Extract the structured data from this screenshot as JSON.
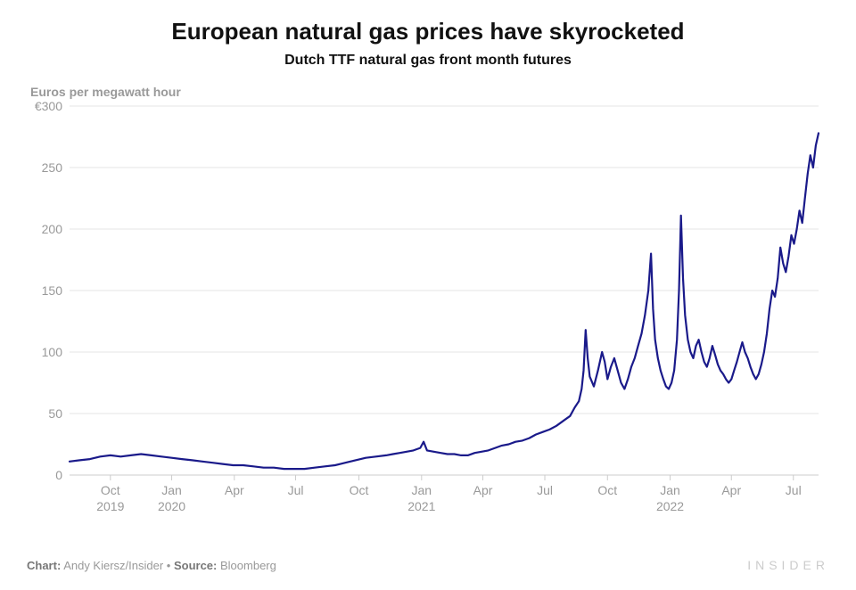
{
  "title": "European natural gas prices have skyrocketed",
  "subtitle": "Dutch TTF natural gas front month futures",
  "ylabel": "Euros per megawatt hour",
  "footer": {
    "chart_label": "Chart:",
    "chart_credit": "Andy Kiersz/Insider",
    "separator": " • ",
    "source_label": "Source:",
    "source_credit": "Bloomberg",
    "brand": "INSIDER"
  },
  "chart": {
    "type": "line",
    "line_color": "#1a1a8a",
    "line_width": 2.2,
    "background_color": "#ffffff",
    "grid_color": "#e5e5e5",
    "axis_color": "#cccccc",
    "ylim": [
      0,
      300
    ],
    "yticks": [
      0,
      50,
      100,
      150,
      200,
      250
    ],
    "ytick_labels": [
      "0",
      "50",
      "100",
      "150",
      "200",
      "250",
      "€300"
    ],
    "ytick_values": [
      0,
      50,
      100,
      150,
      200,
      250,
      300
    ],
    "x_index_range": [
      0,
      1100
    ],
    "xticks": [
      {
        "idx": 60,
        "top": "Oct",
        "bottom": "2019"
      },
      {
        "idx": 150,
        "top": "Jan",
        "bottom": "2020"
      },
      {
        "idx": 242,
        "top": "Apr",
        "bottom": ""
      },
      {
        "idx": 332,
        "top": "Jul",
        "bottom": ""
      },
      {
        "idx": 425,
        "top": "Oct",
        "bottom": ""
      },
      {
        "idx": 517,
        "top": "Jan",
        "bottom": "2021"
      },
      {
        "idx": 607,
        "top": "Apr",
        "bottom": ""
      },
      {
        "idx": 698,
        "top": "Jul",
        "bottom": ""
      },
      {
        "idx": 790,
        "top": "Oct",
        "bottom": ""
      },
      {
        "idx": 882,
        "top": "Jan",
        "bottom": "2022"
      },
      {
        "idx": 972,
        "top": "Apr",
        "bottom": ""
      },
      {
        "idx": 1063,
        "top": "Jul",
        "bottom": ""
      }
    ],
    "data": [
      [
        0,
        11
      ],
      [
        15,
        12
      ],
      [
        30,
        13
      ],
      [
        45,
        15
      ],
      [
        60,
        16
      ],
      [
        75,
        15
      ],
      [
        90,
        16
      ],
      [
        105,
        17
      ],
      [
        120,
        16
      ],
      [
        135,
        15
      ],
      [
        150,
        14
      ],
      [
        165,
        13
      ],
      [
        180,
        12
      ],
      [
        195,
        11
      ],
      [
        210,
        10
      ],
      [
        225,
        9
      ],
      [
        240,
        8
      ],
      [
        255,
        8
      ],
      [
        270,
        7
      ],
      [
        285,
        6
      ],
      [
        300,
        6
      ],
      [
        315,
        5
      ],
      [
        330,
        5
      ],
      [
        345,
        5
      ],
      [
        360,
        6
      ],
      [
        375,
        7
      ],
      [
        390,
        8
      ],
      [
        405,
        10
      ],
      [
        420,
        12
      ],
      [
        435,
        14
      ],
      [
        450,
        15
      ],
      [
        465,
        16
      ],
      [
        475,
        17
      ],
      [
        485,
        18
      ],
      [
        495,
        19
      ],
      [
        505,
        20
      ],
      [
        515,
        22
      ],
      [
        520,
        27
      ],
      [
        525,
        20
      ],
      [
        535,
        19
      ],
      [
        545,
        18
      ],
      [
        555,
        17
      ],
      [
        565,
        17
      ],
      [
        575,
        16
      ],
      [
        585,
        16
      ],
      [
        595,
        18
      ],
      [
        605,
        19
      ],
      [
        615,
        20
      ],
      [
        625,
        22
      ],
      [
        635,
        24
      ],
      [
        645,
        25
      ],
      [
        655,
        27
      ],
      [
        665,
        28
      ],
      [
        675,
        30
      ],
      [
        685,
        33
      ],
      [
        695,
        35
      ],
      [
        705,
        37
      ],
      [
        715,
        40
      ],
      [
        725,
        44
      ],
      [
        735,
        48
      ],
      [
        742,
        55
      ],
      [
        748,
        60
      ],
      [
        752,
        70
      ],
      [
        755,
        85
      ],
      [
        758,
        118
      ],
      [
        761,
        95
      ],
      [
        764,
        80
      ],
      [
        770,
        72
      ],
      [
        776,
        85
      ],
      [
        782,
        100
      ],
      [
        786,
        92
      ],
      [
        790,
        78
      ],
      [
        795,
        88
      ],
      [
        800,
        95
      ],
      [
        805,
        85
      ],
      [
        810,
        75
      ],
      [
        815,
        70
      ],
      [
        820,
        78
      ],
      [
        825,
        88
      ],
      [
        830,
        95
      ],
      [
        835,
        105
      ],
      [
        840,
        115
      ],
      [
        845,
        130
      ],
      [
        850,
        150
      ],
      [
        854,
        180
      ],
      [
        857,
        135
      ],
      [
        860,
        110
      ],
      [
        864,
        95
      ],
      [
        868,
        85
      ],
      [
        872,
        78
      ],
      [
        876,
        72
      ],
      [
        880,
        70
      ],
      [
        884,
        75
      ],
      [
        888,
        85
      ],
      [
        892,
        110
      ],
      [
        895,
        150
      ],
      [
        898,
        211
      ],
      [
        901,
        160
      ],
      [
        904,
        130
      ],
      [
        908,
        110
      ],
      [
        912,
        100
      ],
      [
        916,
        95
      ],
      [
        920,
        105
      ],
      [
        924,
        110
      ],
      [
        928,
        100
      ],
      [
        932,
        92
      ],
      [
        936,
        88
      ],
      [
        940,
        95
      ],
      [
        944,
        105
      ],
      [
        948,
        98
      ],
      [
        952,
        90
      ],
      [
        956,
        85
      ],
      [
        960,
        82
      ],
      [
        964,
        78
      ],
      [
        968,
        75
      ],
      [
        972,
        78
      ],
      [
        976,
        85
      ],
      [
        980,
        92
      ],
      [
        984,
        100
      ],
      [
        988,
        108
      ],
      [
        992,
        100
      ],
      [
        996,
        95
      ],
      [
        1000,
        88
      ],
      [
        1004,
        82
      ],
      [
        1008,
        78
      ],
      [
        1012,
        82
      ],
      [
        1016,
        90
      ],
      [
        1020,
        100
      ],
      [
        1024,
        115
      ],
      [
        1028,
        135
      ],
      [
        1032,
        150
      ],
      [
        1036,
        145
      ],
      [
        1040,
        160
      ],
      [
        1044,
        185
      ],
      [
        1048,
        172
      ],
      [
        1052,
        165
      ],
      [
        1056,
        178
      ],
      [
        1060,
        195
      ],
      [
        1064,
        188
      ],
      [
        1068,
        200
      ],
      [
        1072,
        215
      ],
      [
        1076,
        205
      ],
      [
        1080,
        225
      ],
      [
        1084,
        245
      ],
      [
        1088,
        260
      ],
      [
        1092,
        250
      ],
      [
        1096,
        268
      ],
      [
        1100,
        278
      ]
    ]
  }
}
